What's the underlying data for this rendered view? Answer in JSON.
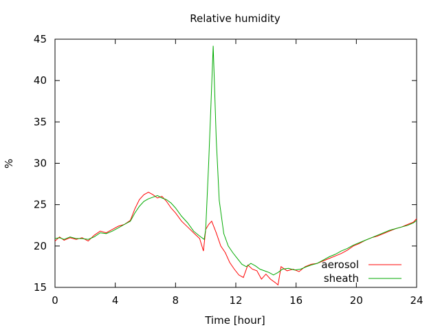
{
  "chart_data": {
    "type": "line",
    "title": "Relative humidity",
    "xlabel": "Time [hour]",
    "ylabel": "%",
    "xlim": [
      0,
      24
    ],
    "ylim": [
      15,
      45
    ],
    "xticks": [
      0,
      4,
      8,
      12,
      16,
      20,
      24
    ],
    "yticks": [
      15,
      20,
      25,
      30,
      35,
      40,
      45
    ],
    "grid": false,
    "legend_position": "bottom-right",
    "series": [
      {
        "name": "aerosol",
        "color": "#ff0000",
        "points": [
          [
            0,
            20.6
          ],
          [
            0.3,
            21.1
          ],
          [
            0.6,
            20.7
          ],
          [
            1,
            21.0
          ],
          [
            1.4,
            20.8
          ],
          [
            1.8,
            21.0
          ],
          [
            2.2,
            20.6
          ],
          [
            2.6,
            21.3
          ],
          [
            3,
            21.8
          ],
          [
            3.4,
            21.6
          ],
          [
            3.8,
            22.0
          ],
          [
            4.2,
            22.4
          ],
          [
            4.6,
            22.6
          ],
          [
            5,
            23.1
          ],
          [
            5.3,
            24.5
          ],
          [
            5.6,
            25.6
          ],
          [
            5.9,
            26.2
          ],
          [
            6.2,
            26.5
          ],
          [
            6.5,
            26.2
          ],
          [
            6.8,
            25.8
          ],
          [
            7.1,
            26.0
          ],
          [
            7.4,
            25.4
          ],
          [
            7.7,
            24.6
          ],
          [
            8,
            24.0
          ],
          [
            8.4,
            23.0
          ],
          [
            8.8,
            22.3
          ],
          [
            9.2,
            21.6
          ],
          [
            9.6,
            20.9
          ],
          [
            9.85,
            19.4
          ],
          [
            10,
            22.0
          ],
          [
            10.2,
            22.6
          ],
          [
            10.4,
            23.0
          ],
          [
            10.7,
            21.6
          ],
          [
            11,
            20.0
          ],
          [
            11.3,
            19.2
          ],
          [
            11.6,
            18.0
          ],
          [
            11.9,
            17.2
          ],
          [
            12.2,
            16.5
          ],
          [
            12.5,
            16.2
          ],
          [
            12.8,
            17.7
          ],
          [
            13.1,
            17.2
          ],
          [
            13.4,
            17.0
          ],
          [
            13.7,
            16.0
          ],
          [
            14.0,
            16.6
          ],
          [
            14.3,
            16.0
          ],
          [
            14.6,
            15.6
          ],
          [
            14.8,
            15.3
          ],
          [
            15.0,
            17.5
          ],
          [
            15.4,
            17.0
          ],
          [
            15.8,
            17.2
          ],
          [
            16.2,
            16.9
          ],
          [
            16.6,
            17.5
          ],
          [
            17,
            17.8
          ],
          [
            17.4,
            17.9
          ],
          [
            17.8,
            18.2
          ],
          [
            18.2,
            18.5
          ],
          [
            18.6,
            18.8
          ],
          [
            19,
            19.1
          ],
          [
            19.4,
            19.5
          ],
          [
            19.8,
            20.0
          ],
          [
            20.2,
            20.3
          ],
          [
            20.6,
            20.7
          ],
          [
            21,
            21.0
          ],
          [
            21.4,
            21.2
          ],
          [
            21.8,
            21.5
          ],
          [
            22.2,
            21.8
          ],
          [
            22.6,
            22.1
          ],
          [
            23,
            22.3
          ],
          [
            23.4,
            22.6
          ],
          [
            23.8,
            22.9
          ],
          [
            24,
            23.3
          ]
        ]
      },
      {
        "name": "sheath",
        "color": "#00aa00",
        "points": [
          [
            0,
            20.9
          ],
          [
            0.3,
            21.0
          ],
          [
            0.6,
            20.8
          ],
          [
            1,
            21.1
          ],
          [
            1.4,
            20.9
          ],
          [
            1.8,
            20.9
          ],
          [
            2.2,
            20.8
          ],
          [
            2.6,
            21.1
          ],
          [
            3,
            21.6
          ],
          [
            3.4,
            21.5
          ],
          [
            3.8,
            21.8
          ],
          [
            4.2,
            22.2
          ],
          [
            4.6,
            22.6
          ],
          [
            5,
            23.0
          ],
          [
            5.3,
            24.0
          ],
          [
            5.6,
            24.8
          ],
          [
            5.9,
            25.4
          ],
          [
            6.2,
            25.7
          ],
          [
            6.5,
            25.9
          ],
          [
            6.8,
            26.1
          ],
          [
            7.1,
            25.8
          ],
          [
            7.4,
            25.6
          ],
          [
            7.7,
            25.2
          ],
          [
            8,
            24.6
          ],
          [
            8.4,
            23.6
          ],
          [
            8.8,
            22.8
          ],
          [
            9.2,
            21.8
          ],
          [
            9.6,
            21.2
          ],
          [
            9.9,
            20.8
          ],
          [
            10.0,
            22.0
          ],
          [
            10.2,
            30.0
          ],
          [
            10.35,
            37.0
          ],
          [
            10.5,
            44.2
          ],
          [
            10.7,
            33.0
          ],
          [
            10.9,
            25.5
          ],
          [
            11.2,
            21.5
          ],
          [
            11.5,
            20.0
          ],
          [
            11.8,
            19.2
          ],
          [
            12.1,
            18.5
          ],
          [
            12.4,
            17.8
          ],
          [
            12.7,
            17.5
          ],
          [
            13.0,
            17.9
          ],
          [
            13.3,
            17.6
          ],
          [
            13.6,
            17.2
          ],
          [
            13.9,
            17.0
          ],
          [
            14.2,
            16.8
          ],
          [
            14.5,
            16.5
          ],
          [
            14.8,
            16.8
          ],
          [
            15.1,
            17.2
          ],
          [
            15.5,
            17.3
          ],
          [
            15.9,
            17.1
          ],
          [
            16.3,
            17.2
          ],
          [
            16.7,
            17.5
          ],
          [
            17,
            17.7
          ],
          [
            17.4,
            17.9
          ],
          [
            17.8,
            18.3
          ],
          [
            18.2,
            18.7
          ],
          [
            18.6,
            19.0
          ],
          [
            19,
            19.4
          ],
          [
            19.4,
            19.7
          ],
          [
            19.8,
            20.1
          ],
          [
            20.2,
            20.4
          ],
          [
            20.6,
            20.7
          ],
          [
            21,
            21.0
          ],
          [
            21.4,
            21.3
          ],
          [
            21.8,
            21.6
          ],
          [
            22.2,
            21.9
          ],
          [
            22.6,
            22.1
          ],
          [
            23,
            22.3
          ],
          [
            23.4,
            22.5
          ],
          [
            23.8,
            22.8
          ],
          [
            24,
            23.1
          ]
        ]
      }
    ]
  }
}
